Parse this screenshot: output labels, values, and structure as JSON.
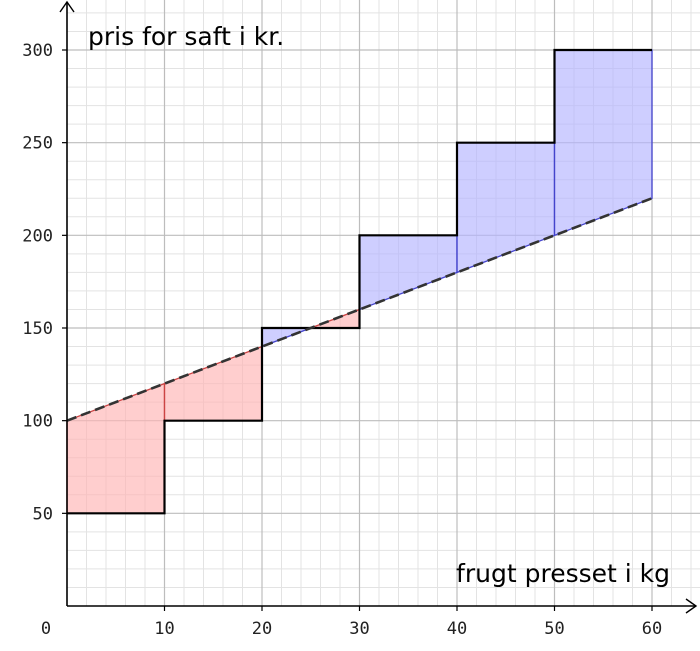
{
  "chart_data": {
    "type": "line",
    "ylabel": "pris for saft i kr.",
    "xlabel": "frugt presset i kg",
    "xlim": [
      0,
      60
    ],
    "ylim": [
      0,
      300
    ],
    "x_ticks": [
      "0",
      "10",
      "20",
      "30",
      "40",
      "50",
      "60"
    ],
    "y_ticks": [
      "50",
      "100",
      "150",
      "200",
      "250",
      "300"
    ],
    "grid": true,
    "series": [
      {
        "kind": "step",
        "color": "#000000",
        "points": [
          [
            0,
            50
          ],
          [
            10,
            50
          ],
          [
            10,
            100
          ],
          [
            20,
            100
          ],
          [
            20,
            150
          ],
          [
            30,
            150
          ],
          [
            30,
            200
          ],
          [
            40,
            200
          ],
          [
            40,
            250
          ],
          [
            50,
            250
          ],
          [
            50,
            300
          ],
          [
            60,
            300
          ]
        ]
      },
      {
        "kind": "linear",
        "style": "dashed",
        "color": "#333333",
        "points": [
          [
            0,
            100
          ],
          [
            60,
            220
          ]
        ]
      }
    ],
    "fill_colors": {
      "below_line": "#ffb3b3",
      "above_line": "#b3b3ff",
      "below_edge": "#cc4444",
      "above_edge": "#4444cc"
    }
  }
}
